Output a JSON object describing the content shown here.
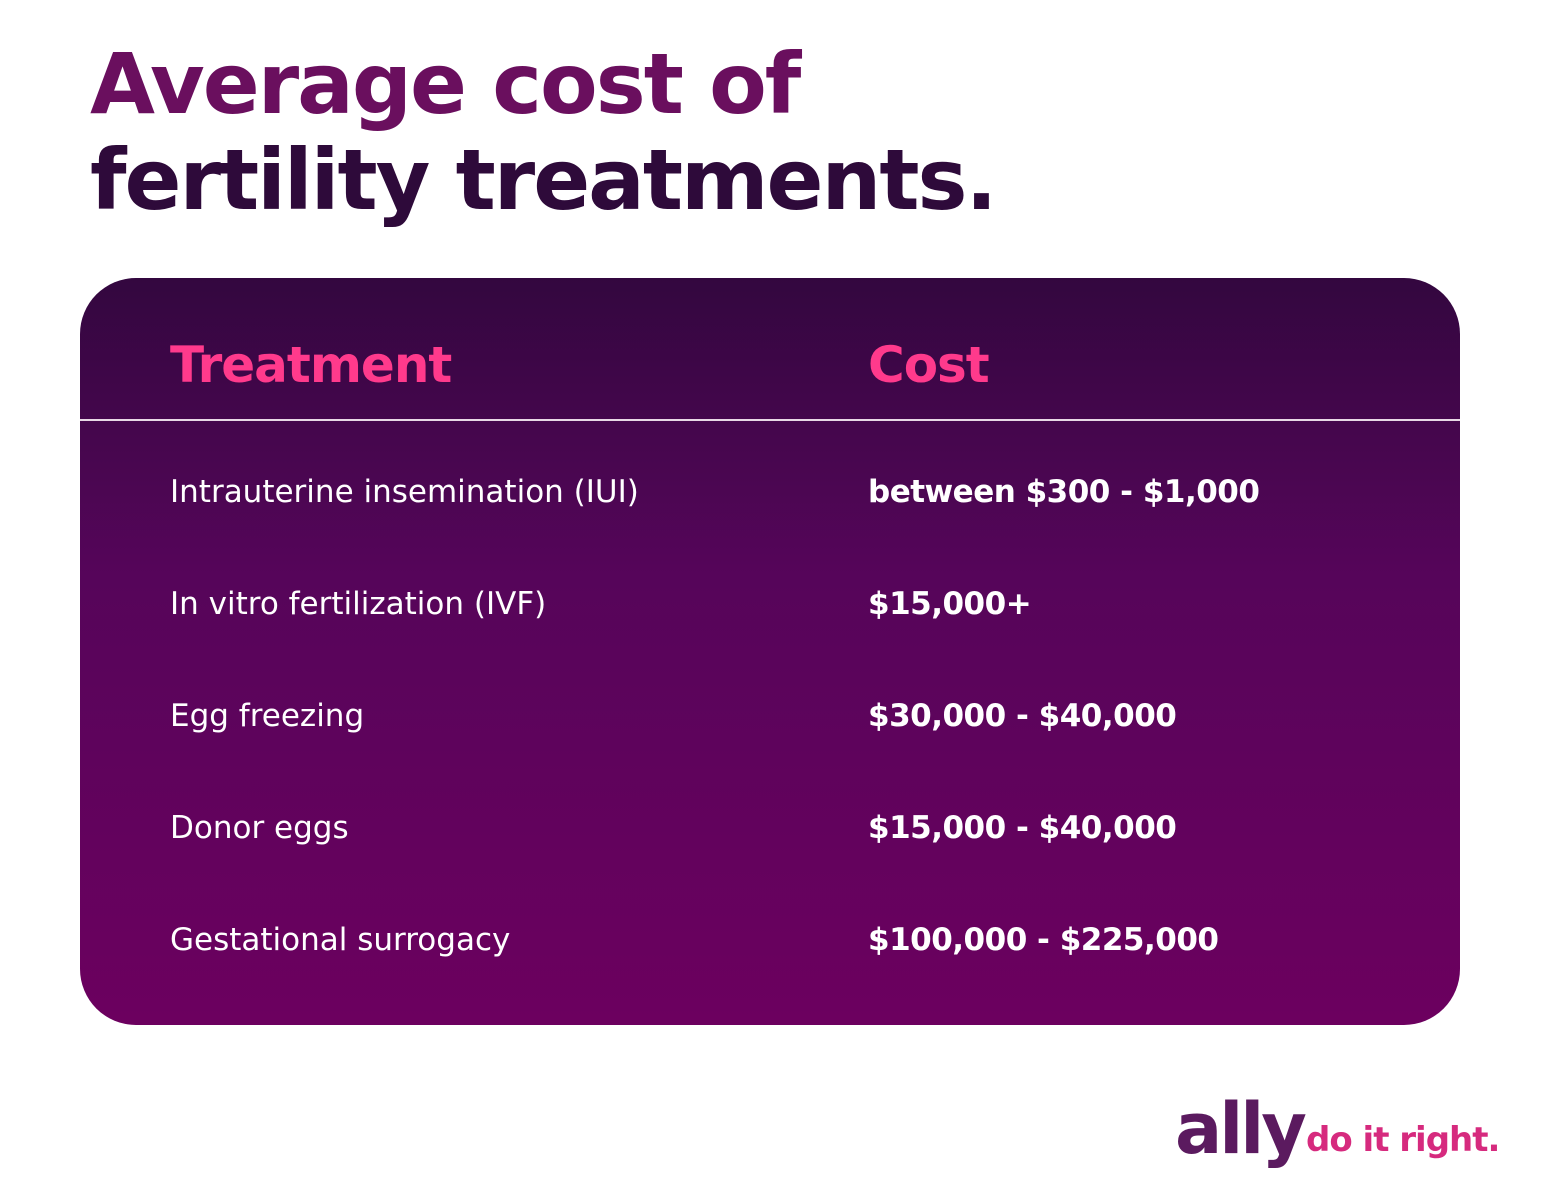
{
  "header": {
    "title_lines": [
      "Average cost of",
      "fertility treatments."
    ]
  },
  "table": {
    "columns": [
      "Treatment",
      "Cost"
    ],
    "rows": [
      [
        "Intrauterine insemination (IUI)",
        "between $300 - $1,000"
      ],
      [
        "In vitro fertilization (IVF)",
        "$15,000+"
      ],
      [
        "Egg freezing",
        "$30,000 - $40,000"
      ],
      [
        "Donor eggs",
        "$15,000 - $40,000"
      ],
      [
        "Gestational surrogacy",
        "$100,000 - $225,000"
      ]
    ]
  },
  "footer": {
    "logo": "ally",
    "tagline": "do it right."
  }
}
